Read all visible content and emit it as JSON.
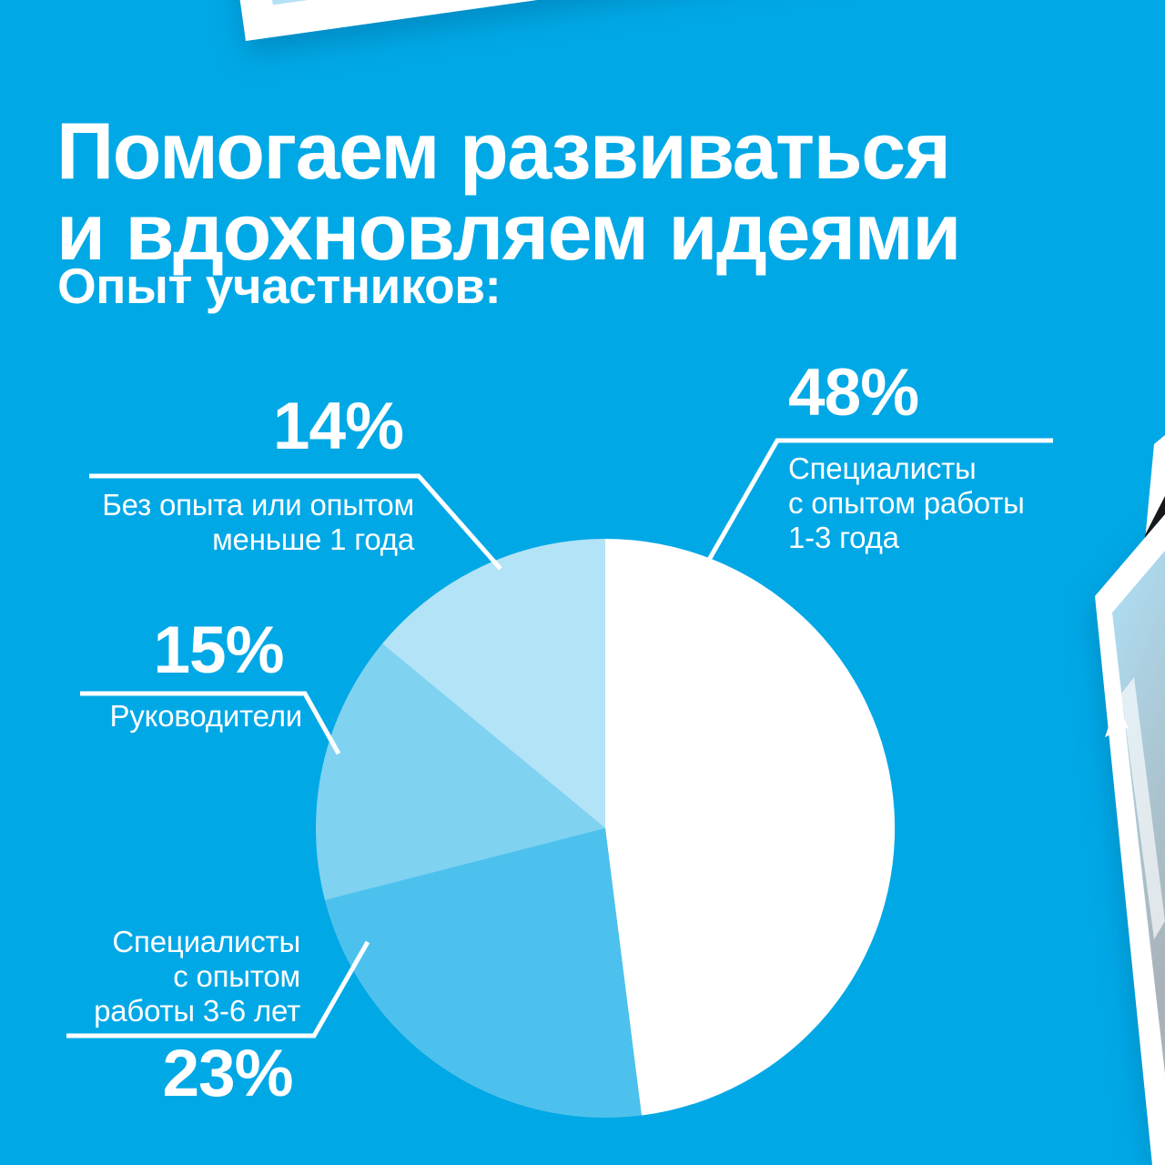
{
  "page": {
    "background": "#00A8E6",
    "text_color": "#FFFFFF"
  },
  "header": {
    "title_line1": "Помогаем развиваться",
    "title_line2": "и вдохновляем идеями",
    "subtitle": "Опыт участников:"
  },
  "chart_data": {
    "type": "pie",
    "title": "Опыт участников:",
    "direction": "clockwise",
    "start_angle_deg": 0,
    "legend_position": "callouts",
    "slices": [
      {
        "label": "Специалисты с опытом работы 1-3 года",
        "value_pct": 48,
        "color": "#FFFFFF"
      },
      {
        "label": "Специалисты с опытом работы 3-6 лет",
        "value_pct": 23,
        "color": "#4DC1ED"
      },
      {
        "label": "Руководители",
        "value_pct": 15,
        "color": "#80D2F1"
      },
      {
        "label": "Без опыта или опытом меньше 1 года",
        "value_pct": 14,
        "color": "#B2E3F7"
      }
    ]
  },
  "callouts": {
    "no_experience": {
      "percent": "14%",
      "lines": [
        "Без опыта или опытом",
        "меньше 1 года"
      ]
    },
    "specialists_1_3": {
      "percent": "48%",
      "lines": [
        "Специалисты",
        "с опытом работы",
        "1-3 года"
      ]
    },
    "managers": {
      "percent": "15%",
      "lines": [
        "Руководители"
      ]
    },
    "specialists_3_6": {
      "percent": "23%",
      "lines": [
        "Специалисты",
        "с опытом",
        "работы 3-6 лет"
      ]
    }
  },
  "decor": {
    "photo_frame_fill": "#FFFFFF",
    "photo_top_inner": "#B5E1F5",
    "photo_right_inner_top": "#AEE0F6",
    "photo_right_inner_bottom": "#A9B2B8",
    "photo_dark_fill": "#15171A"
  }
}
